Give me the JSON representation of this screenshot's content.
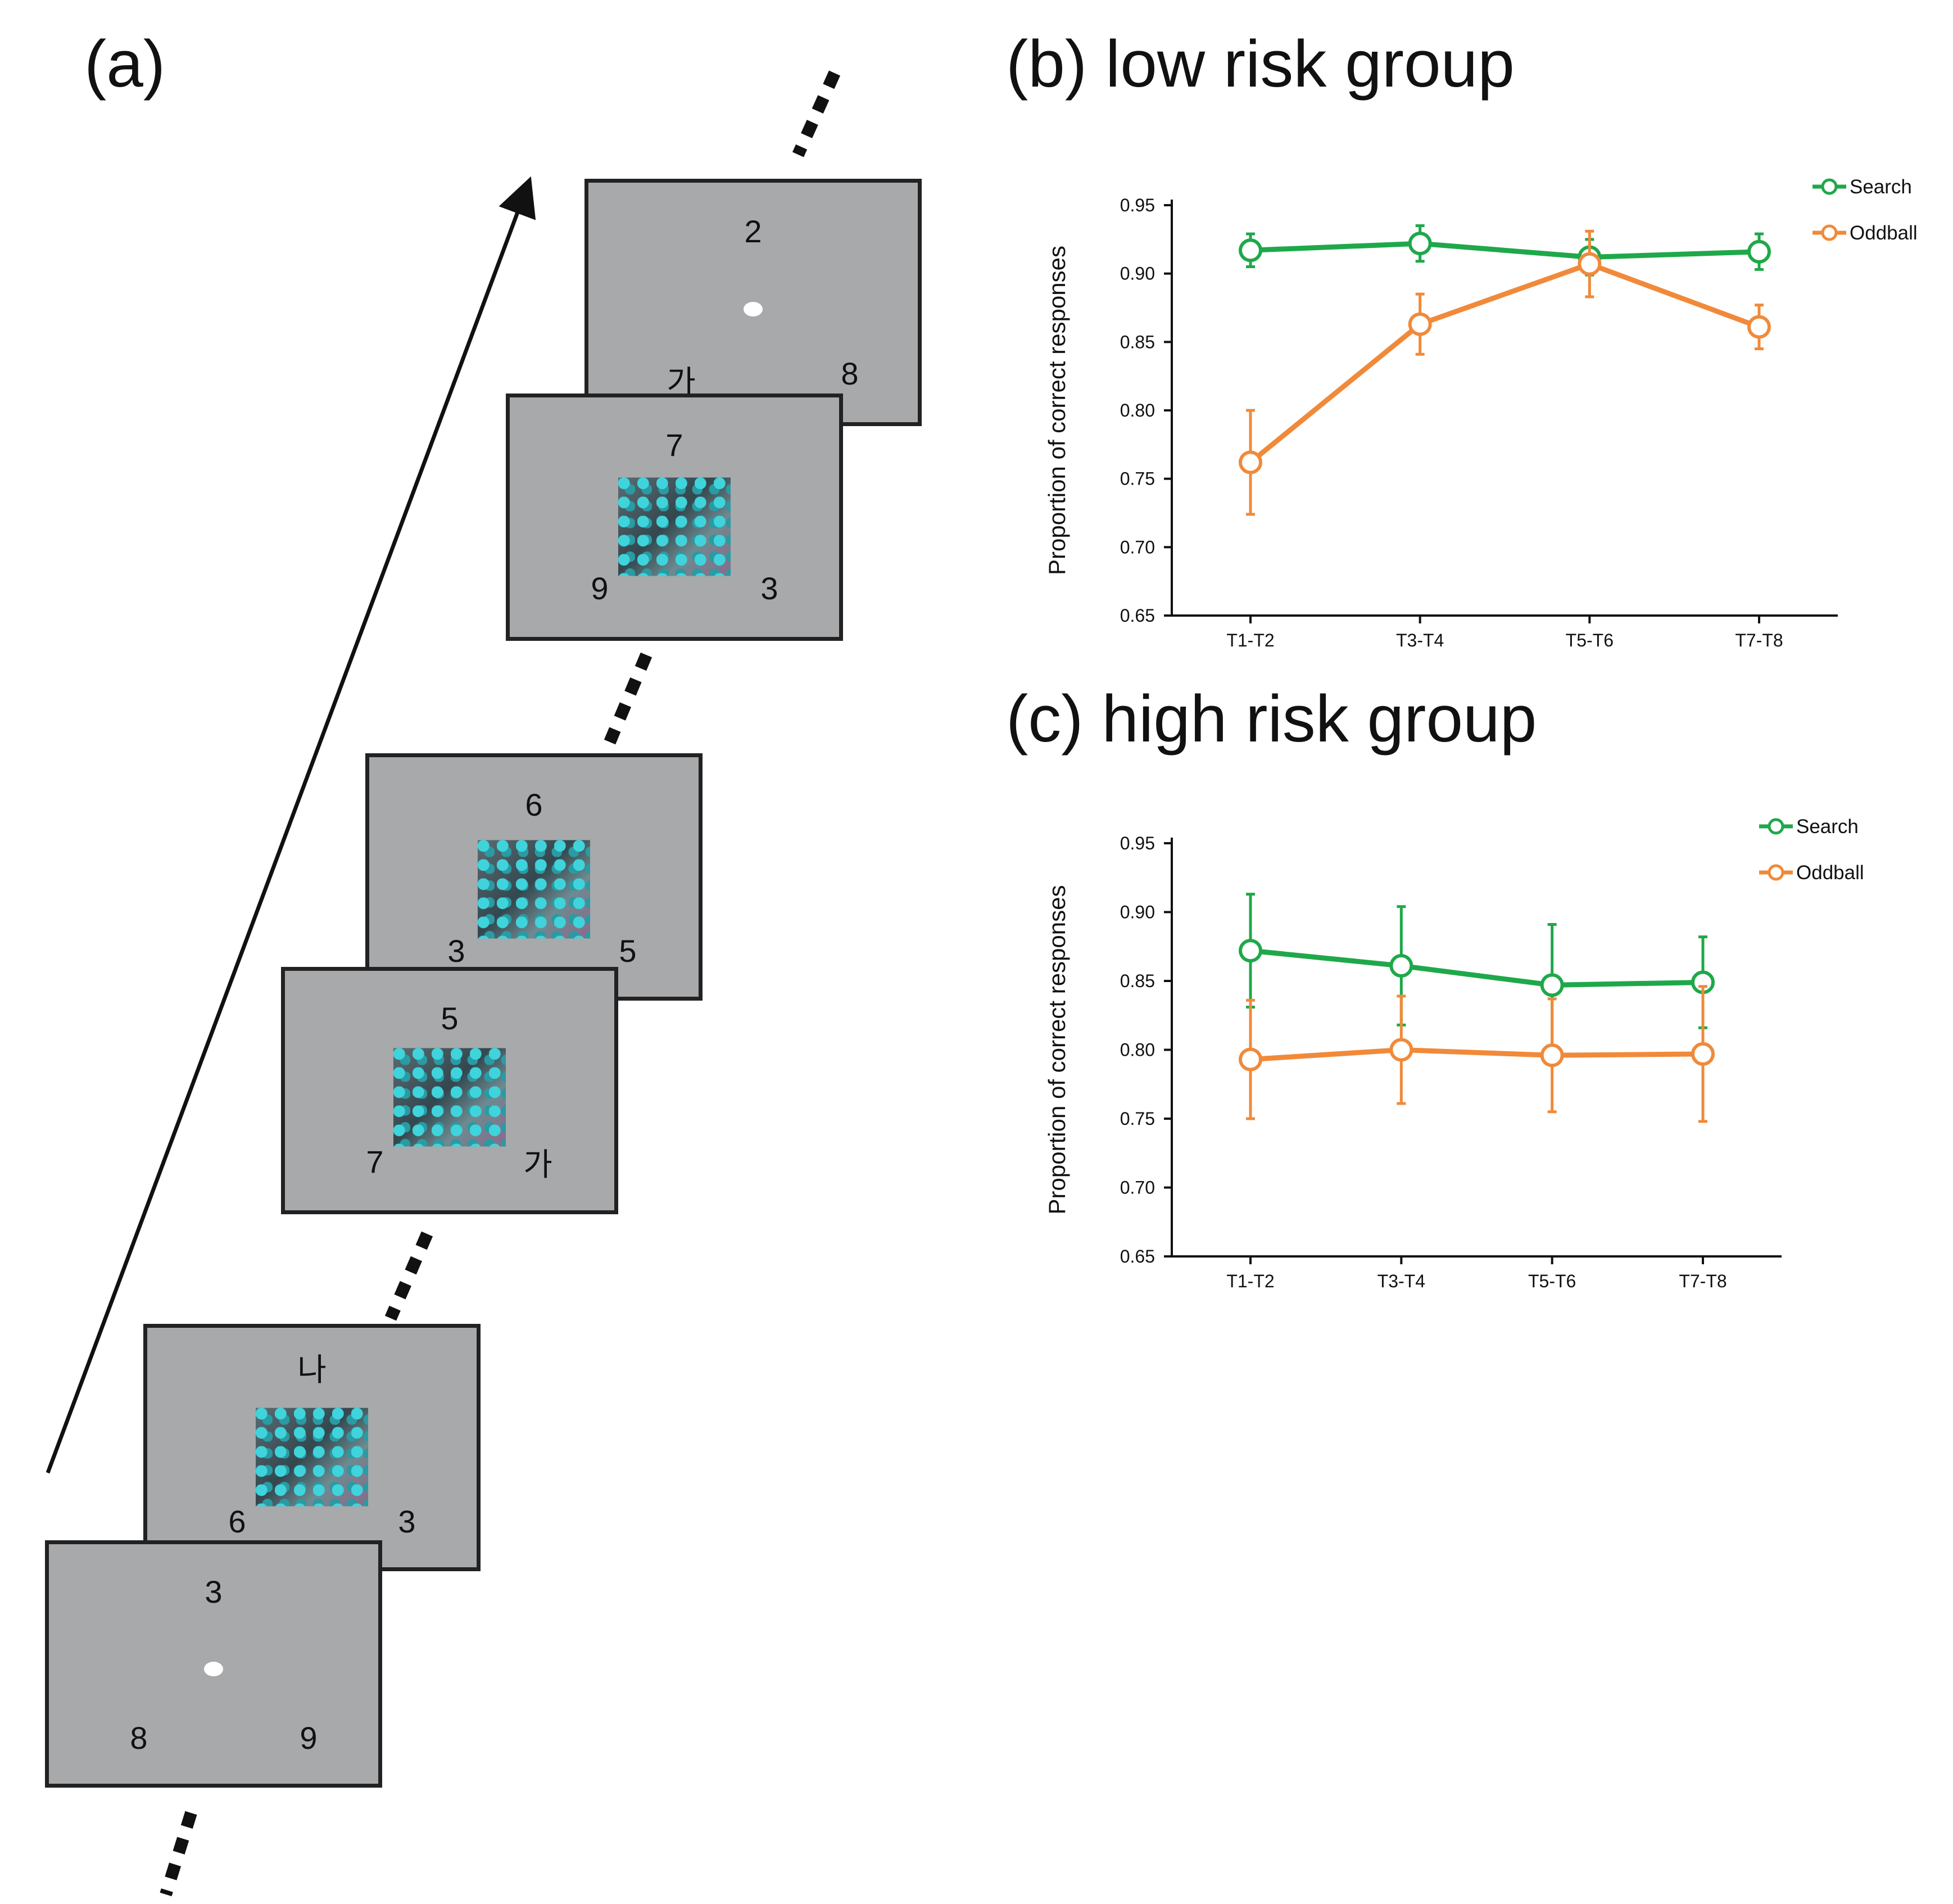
{
  "panel_a": {
    "label": "(a)",
    "screens": [
      {
        "top": "2",
        "left": "가",
        "right": "8",
        "center": "fixation"
      },
      {
        "top": "7",
        "left": "9",
        "right": "3",
        "center": "image"
      },
      {
        "top": "6",
        "left": "3",
        "right": "5",
        "center": "image"
      },
      {
        "top": "5",
        "left": "7",
        "right": "가",
        "center": "image"
      },
      {
        "top": "나",
        "left": "6",
        "right": "3",
        "center": "image"
      },
      {
        "top": "3",
        "left": "8",
        "right": "9",
        "center": "fixation"
      }
    ]
  },
  "colors": {
    "search": "#1fa84a",
    "oddball": "#f08a3a"
  },
  "chart_data": [
    {
      "type": "line",
      "title": "(b) low risk group",
      "xlabel": "",
      "ylabel": "Proportion of correct responses",
      "categories": [
        "T1-T2",
        "T3-T4",
        "T5-T6",
        "T7-T8"
      ],
      "ylim": [
        0.65,
        0.95
      ],
      "yticks": [
        "0.65",
        "0.70",
        "0.75",
        "0.80",
        "0.85",
        "0.90",
        "0.95"
      ],
      "series": [
        {
          "name": "Search",
          "values": [
            0.917,
            0.922,
            0.912,
            0.916
          ],
          "errors": [
            0.012,
            0.013,
            0.013,
            0.013
          ]
        },
        {
          "name": "Oddball",
          "values": [
            0.762,
            0.863,
            0.907,
            0.861
          ],
          "errors": [
            0.038,
            0.022,
            0.024,
            0.016
          ]
        }
      ],
      "legend": "top-right"
    },
    {
      "type": "line",
      "title": "(c) high risk group",
      "xlabel": "",
      "ylabel": "Proportion of correct responses",
      "categories": [
        "T1-T2",
        "T3-T4",
        "T5-T6",
        "T7-T8"
      ],
      "ylim": [
        0.65,
        0.95
      ],
      "yticks": [
        "0.65",
        "0.70",
        "0.75",
        "0.80",
        "0.85",
        "0.90",
        "0.95"
      ],
      "series": [
        {
          "name": "Search",
          "values": [
            0.872,
            0.861,
            0.847,
            0.849
          ],
          "errors": [
            0.041,
            0.043,
            0.044,
            0.033
          ]
        },
        {
          "name": "Oddball",
          "values": [
            0.793,
            0.8,
            0.796,
            0.797
          ],
          "errors": [
            0.043,
            0.039,
            0.041,
            0.049
          ]
        }
      ],
      "legend": "top-right"
    }
  ]
}
